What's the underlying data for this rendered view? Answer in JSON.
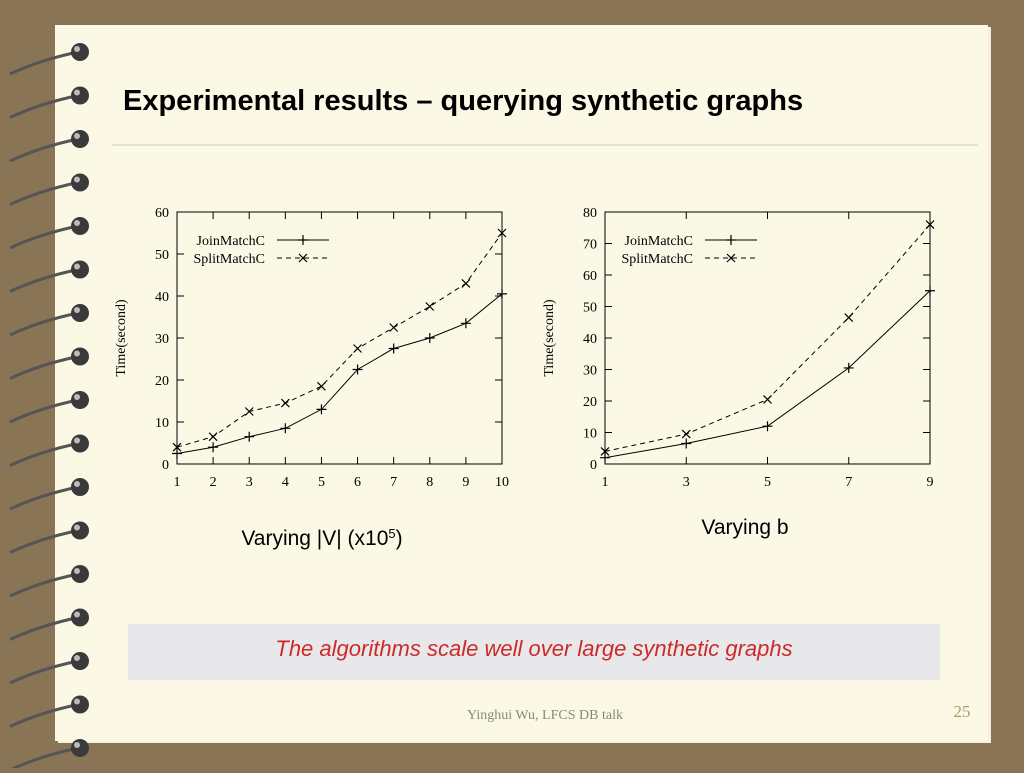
{
  "title": "Experimental results – querying synthetic graphs",
  "note": "The algorithms scale well over large synthetic graphs",
  "footer": "Yinghui Wu, LFCS DB talk",
  "page_number": "25",
  "chart_data": [
    {
      "type": "line",
      "xlabel": [
        "Varying |V| (x10",
        "5",
        ")"
      ],
      "ylabel": "Time(second)",
      "x": [
        1,
        2,
        3,
        4,
        5,
        6,
        7,
        8,
        9,
        10
      ],
      "xlim": [
        1,
        10
      ],
      "xticks": [
        1,
        2,
        3,
        4,
        5,
        6,
        7,
        8,
        9,
        10
      ],
      "ylim": [
        0,
        60
      ],
      "yticks": [
        0,
        10,
        20,
        30,
        40,
        50,
        60
      ],
      "legend": "upper left",
      "series": [
        {
          "name": "JoinMatchC",
          "color": "#000000",
          "marker": "+",
          "dashed": false,
          "values": [
            2.5,
            4,
            6.5,
            8.5,
            13,
            22.5,
            27.5,
            30,
            33.5,
            40.5
          ]
        },
        {
          "name": "SplitMatchC",
          "color": "#000000",
          "marker": "x",
          "dashed": true,
          "values": [
            4,
            6.5,
            12.5,
            14.5,
            18.5,
            27.5,
            32.5,
            37.5,
            43,
            55
          ]
        }
      ]
    },
    {
      "type": "line",
      "xlabel": [
        "Varying b"
      ],
      "ylabel": "Time(second)",
      "x": [
        1,
        3,
        5,
        7,
        9
      ],
      "xlim": [
        1,
        9
      ],
      "xticks": [
        1,
        3,
        5,
        7,
        9
      ],
      "ylim": [
        0,
        80
      ],
      "yticks": [
        0,
        10,
        20,
        30,
        40,
        50,
        60,
        70,
        80
      ],
      "legend": "upper left",
      "series": [
        {
          "name": "JoinMatchC",
          "color": "#000000",
          "marker": "+",
          "dashed": false,
          "values": [
            2,
            6.5,
            12,
            30.5,
            55
          ]
        },
        {
          "name": "SplitMatchC",
          "color": "#000000",
          "marker": "x",
          "dashed": true,
          "values": [
            4,
            9.5,
            20.5,
            46.5,
            76
          ]
        }
      ]
    }
  ]
}
